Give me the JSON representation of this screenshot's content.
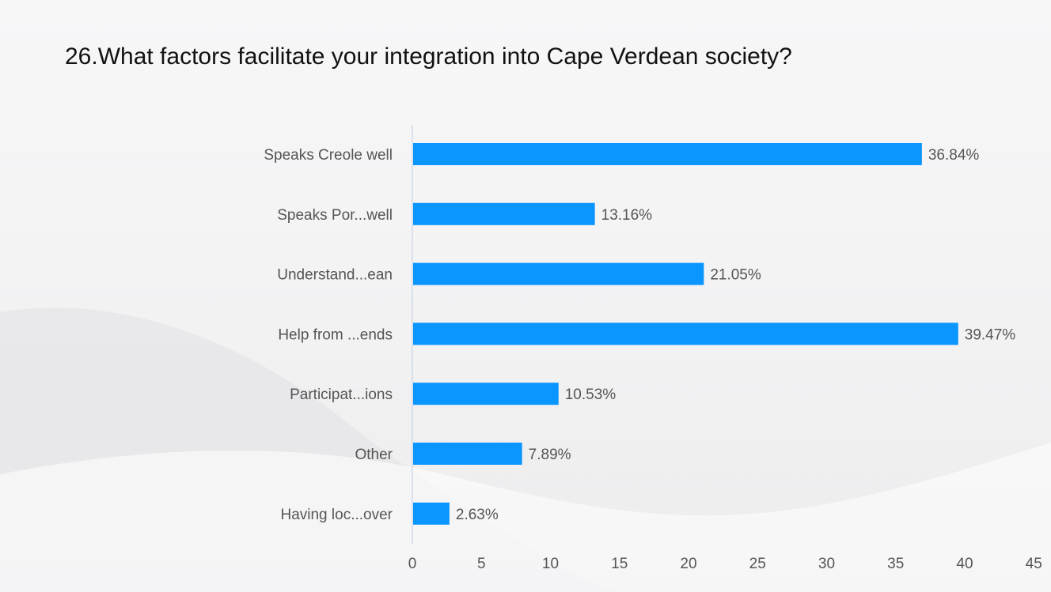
{
  "title": "26.What factors facilitate your integration into Cape Verdean society?",
  "colors": {
    "bar": "#0a95ff",
    "axis": "#c9d3e6",
    "text": "#555555",
    "title": "#111111"
  },
  "chart_data": {
    "type": "bar",
    "orientation": "horizontal",
    "categories": [
      "Speaks Creole well",
      "Speaks Por...well",
      "Understand...ean",
      "Help from ...ends",
      "Participat...ions",
      "Other",
      "Having loc...over"
    ],
    "values": [
      36.84,
      13.16,
      21.05,
      39.47,
      10.53,
      7.89,
      2.63
    ],
    "value_labels": [
      "36.84%",
      "13.16%",
      "21.05%",
      "39.47%",
      "10.53%",
      "7.89%",
      "2.63%"
    ],
    "xlim": [
      0,
      45
    ],
    "xticks": [
      0,
      5,
      10,
      15,
      20,
      25,
      30,
      35,
      40,
      45
    ],
    "xlabel": "",
    "ylabel": "",
    "grid": false,
    "legend": "none"
  }
}
